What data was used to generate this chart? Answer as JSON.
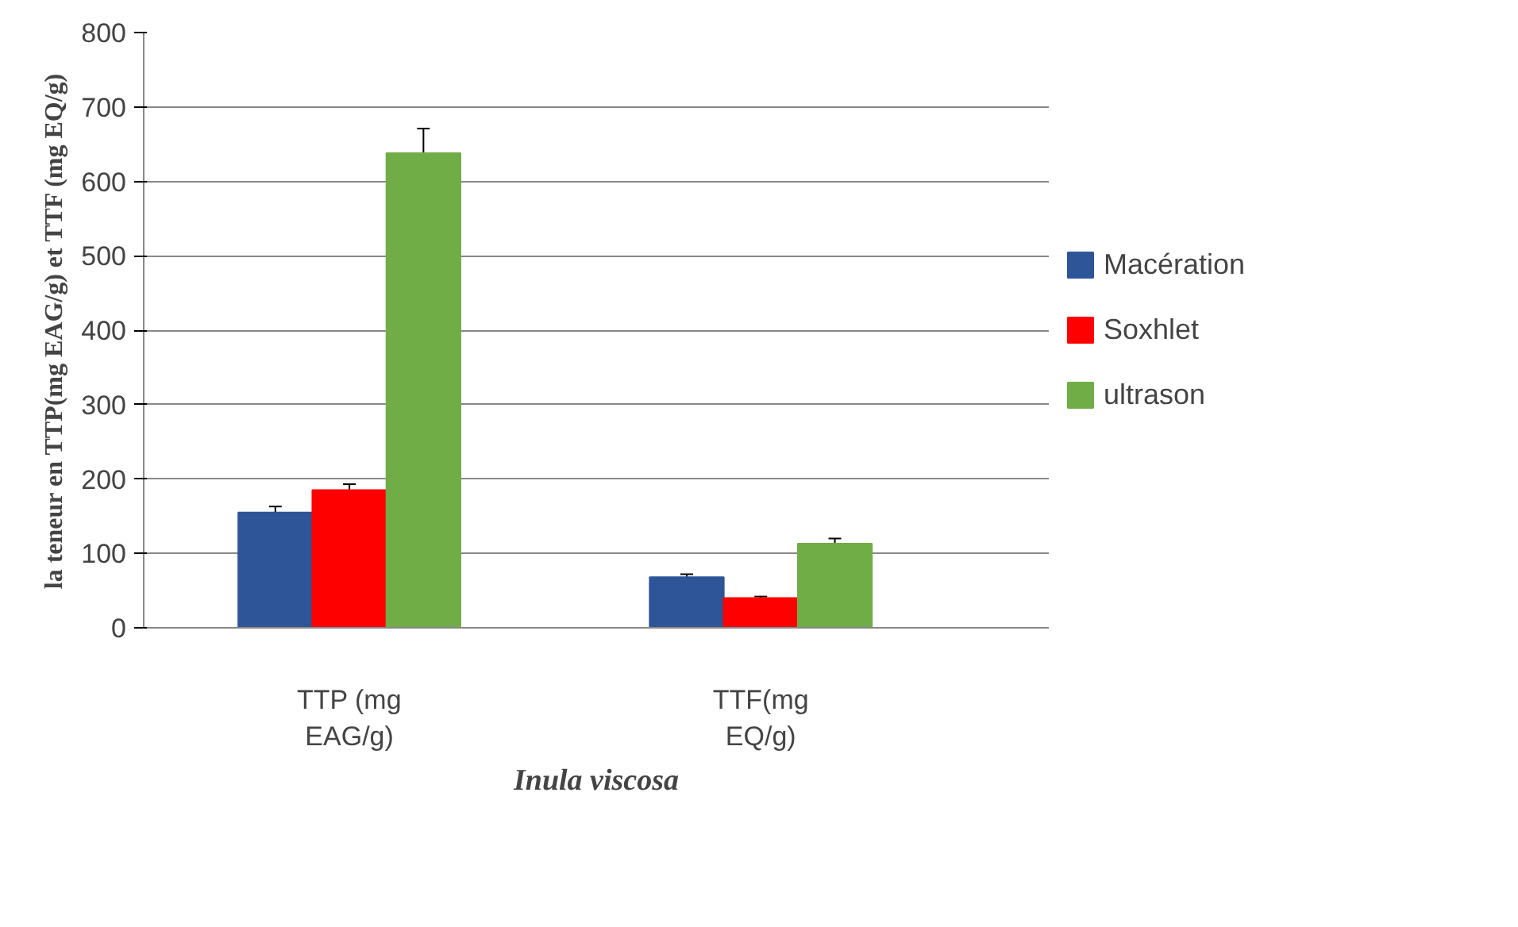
{
  "chart_data": {
    "type": "bar",
    "xlabel": "Inula viscosa",
    "ylabel": "la teneur en TTP(mg EAG/g) et TTF (mg EQ/g)",
    "categories": [
      "TTP (mg EAG/g)",
      "TTF(mg EQ/g)"
    ],
    "series": [
      {
        "name": "Macération",
        "color": "#2e5597",
        "values": [
          155,
          68
        ],
        "errors": [
          8,
          4
        ]
      },
      {
        "name": "Soxhlet",
        "color": "#ff0000",
        "values": [
          185,
          40
        ],
        "errors": [
          8,
          2
        ]
      },
      {
        "name": "ultrason",
        "color": "#70ad47",
        "values": [
          638,
          113
        ],
        "errors": [
          33,
          7
        ]
      }
    ],
    "ylim": [
      0,
      800
    ],
    "yticks": [
      0,
      100,
      200,
      300,
      400,
      500,
      600,
      700,
      800
    ],
    "grid": "y",
    "legend": "right"
  }
}
